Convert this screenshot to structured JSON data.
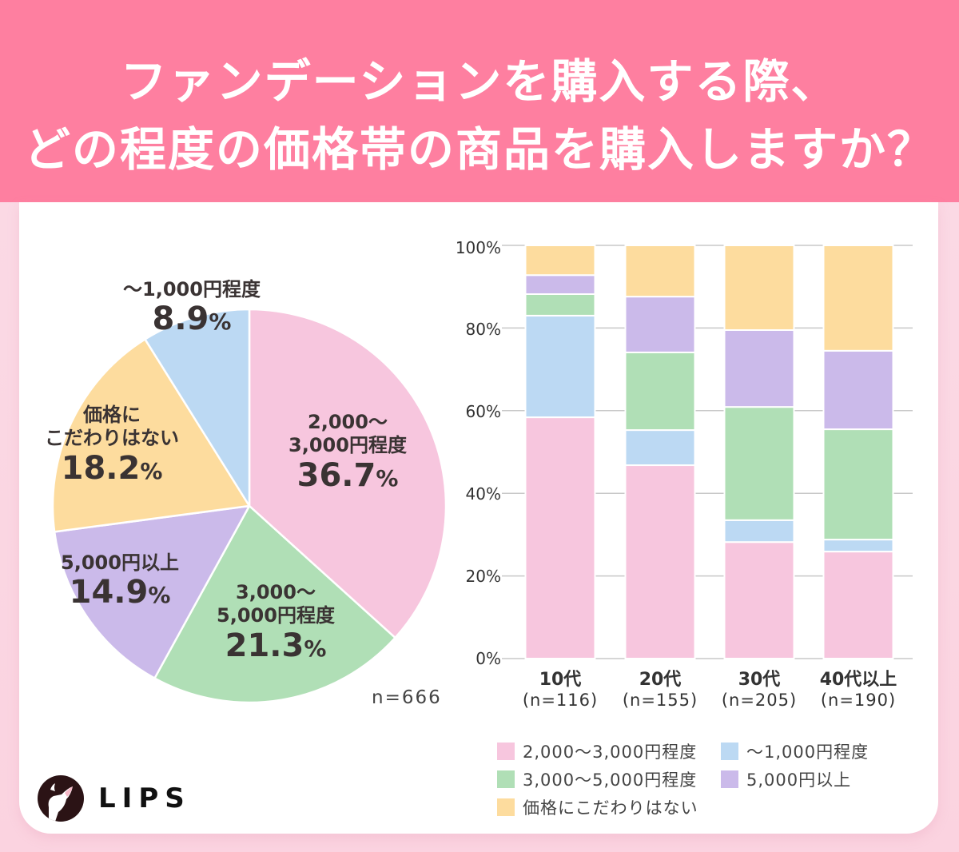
{
  "header": {
    "title_line1": "ファンデーションを購入する際、",
    "title_line2": "どの程度の価格帯の商品を購入しますか？"
  },
  "colors": {
    "header_bg": "#fe7fa0",
    "pink": "#f7c6de",
    "green": "#b0dfb6",
    "purple": "#cbbaea",
    "orange": "#fddc9e",
    "blue": "#bcd9f3"
  },
  "chart_data": [
    {
      "type": "pie",
      "title": "",
      "start": "top",
      "direction": "clockwise",
      "slices": [
        {
          "label_line1": "2,000〜",
          "label_line2": "3,000円程度",
          "value": 36.7,
          "value_text": "36.7",
          "color": "#f7c6de"
        },
        {
          "label_line1": "3,000〜",
          "label_line2": "5,000円程度",
          "value": 21.3,
          "value_text": "21.3",
          "color": "#b0dfb6"
        },
        {
          "label_line1": "5,000円以上",
          "label_line2": "",
          "value": 14.9,
          "value_text": "14.9",
          "color": "#cbbaea"
        },
        {
          "label_line1": "価格に",
          "label_line2": "こだわりはない",
          "value": 18.2,
          "value_text": "18.2",
          "color": "#fddc9e"
        },
        {
          "label_line1": "〜1,000円程度",
          "label_line2": "",
          "value": 8.9,
          "value_text": "8.9",
          "color": "#bcd9f3"
        }
      ],
      "percent_sign": "%",
      "n_label": "n=666"
    },
    {
      "type": "bar",
      "stacked": true,
      "xlabel": "",
      "ylabel": "",
      "ylim": [
        0,
        100
      ],
      "grid": true,
      "yticks": [
        "0%",
        "20%",
        "40%",
        "60%",
        "80%",
        "100%"
      ],
      "categories": [
        {
          "label": "10代",
          "n": "(n=116)"
        },
        {
          "label": "20代",
          "n": "(n=155)"
        },
        {
          "label": "30代",
          "n": "(n=205)"
        },
        {
          "label": "40代以上",
          "n": "(n=190)"
        }
      ],
      "series": [
        {
          "name": "2,000〜3,000円程度",
          "color": "#f7c6de",
          "values": [
            58.4,
            46.8,
            28.2,
            25.9
          ]
        },
        {
          "name": "〜1,000円程度",
          "color": "#bcd9f3",
          "values": [
            24.6,
            8.5,
            5.3,
            2.9
          ]
        },
        {
          "name": "3,000〜5,000円程度",
          "color": "#b0dfb6",
          "values": [
            5.2,
            18.8,
            27.4,
            26.7
          ]
        },
        {
          "name": "5,000円以上",
          "color": "#cbbaea",
          "values": [
            4.6,
            13.5,
            18.6,
            19.0
          ]
        },
        {
          "name": "価格にこだわりはない",
          "color": "#fddc9e",
          "values": [
            7.2,
            12.4,
            20.5,
            25.5
          ]
        }
      ],
      "legend_placement": "bottom",
      "legend": [
        {
          "name": "2,000〜3,000円程度",
          "color": "#f7c6de"
        },
        {
          "name": "〜1,000円程度",
          "color": "#bcd9f3"
        },
        {
          "name": "3,000〜5,000円程度",
          "color": "#b0dfb6"
        },
        {
          "name": "5,000円以上",
          "color": "#cbbaea"
        },
        {
          "name": "価格にこだわりはない",
          "color": "#fddc9e"
        }
      ]
    }
  ],
  "brand": {
    "logo_text": "LIPS",
    "logo_icon": "deer-icon"
  }
}
